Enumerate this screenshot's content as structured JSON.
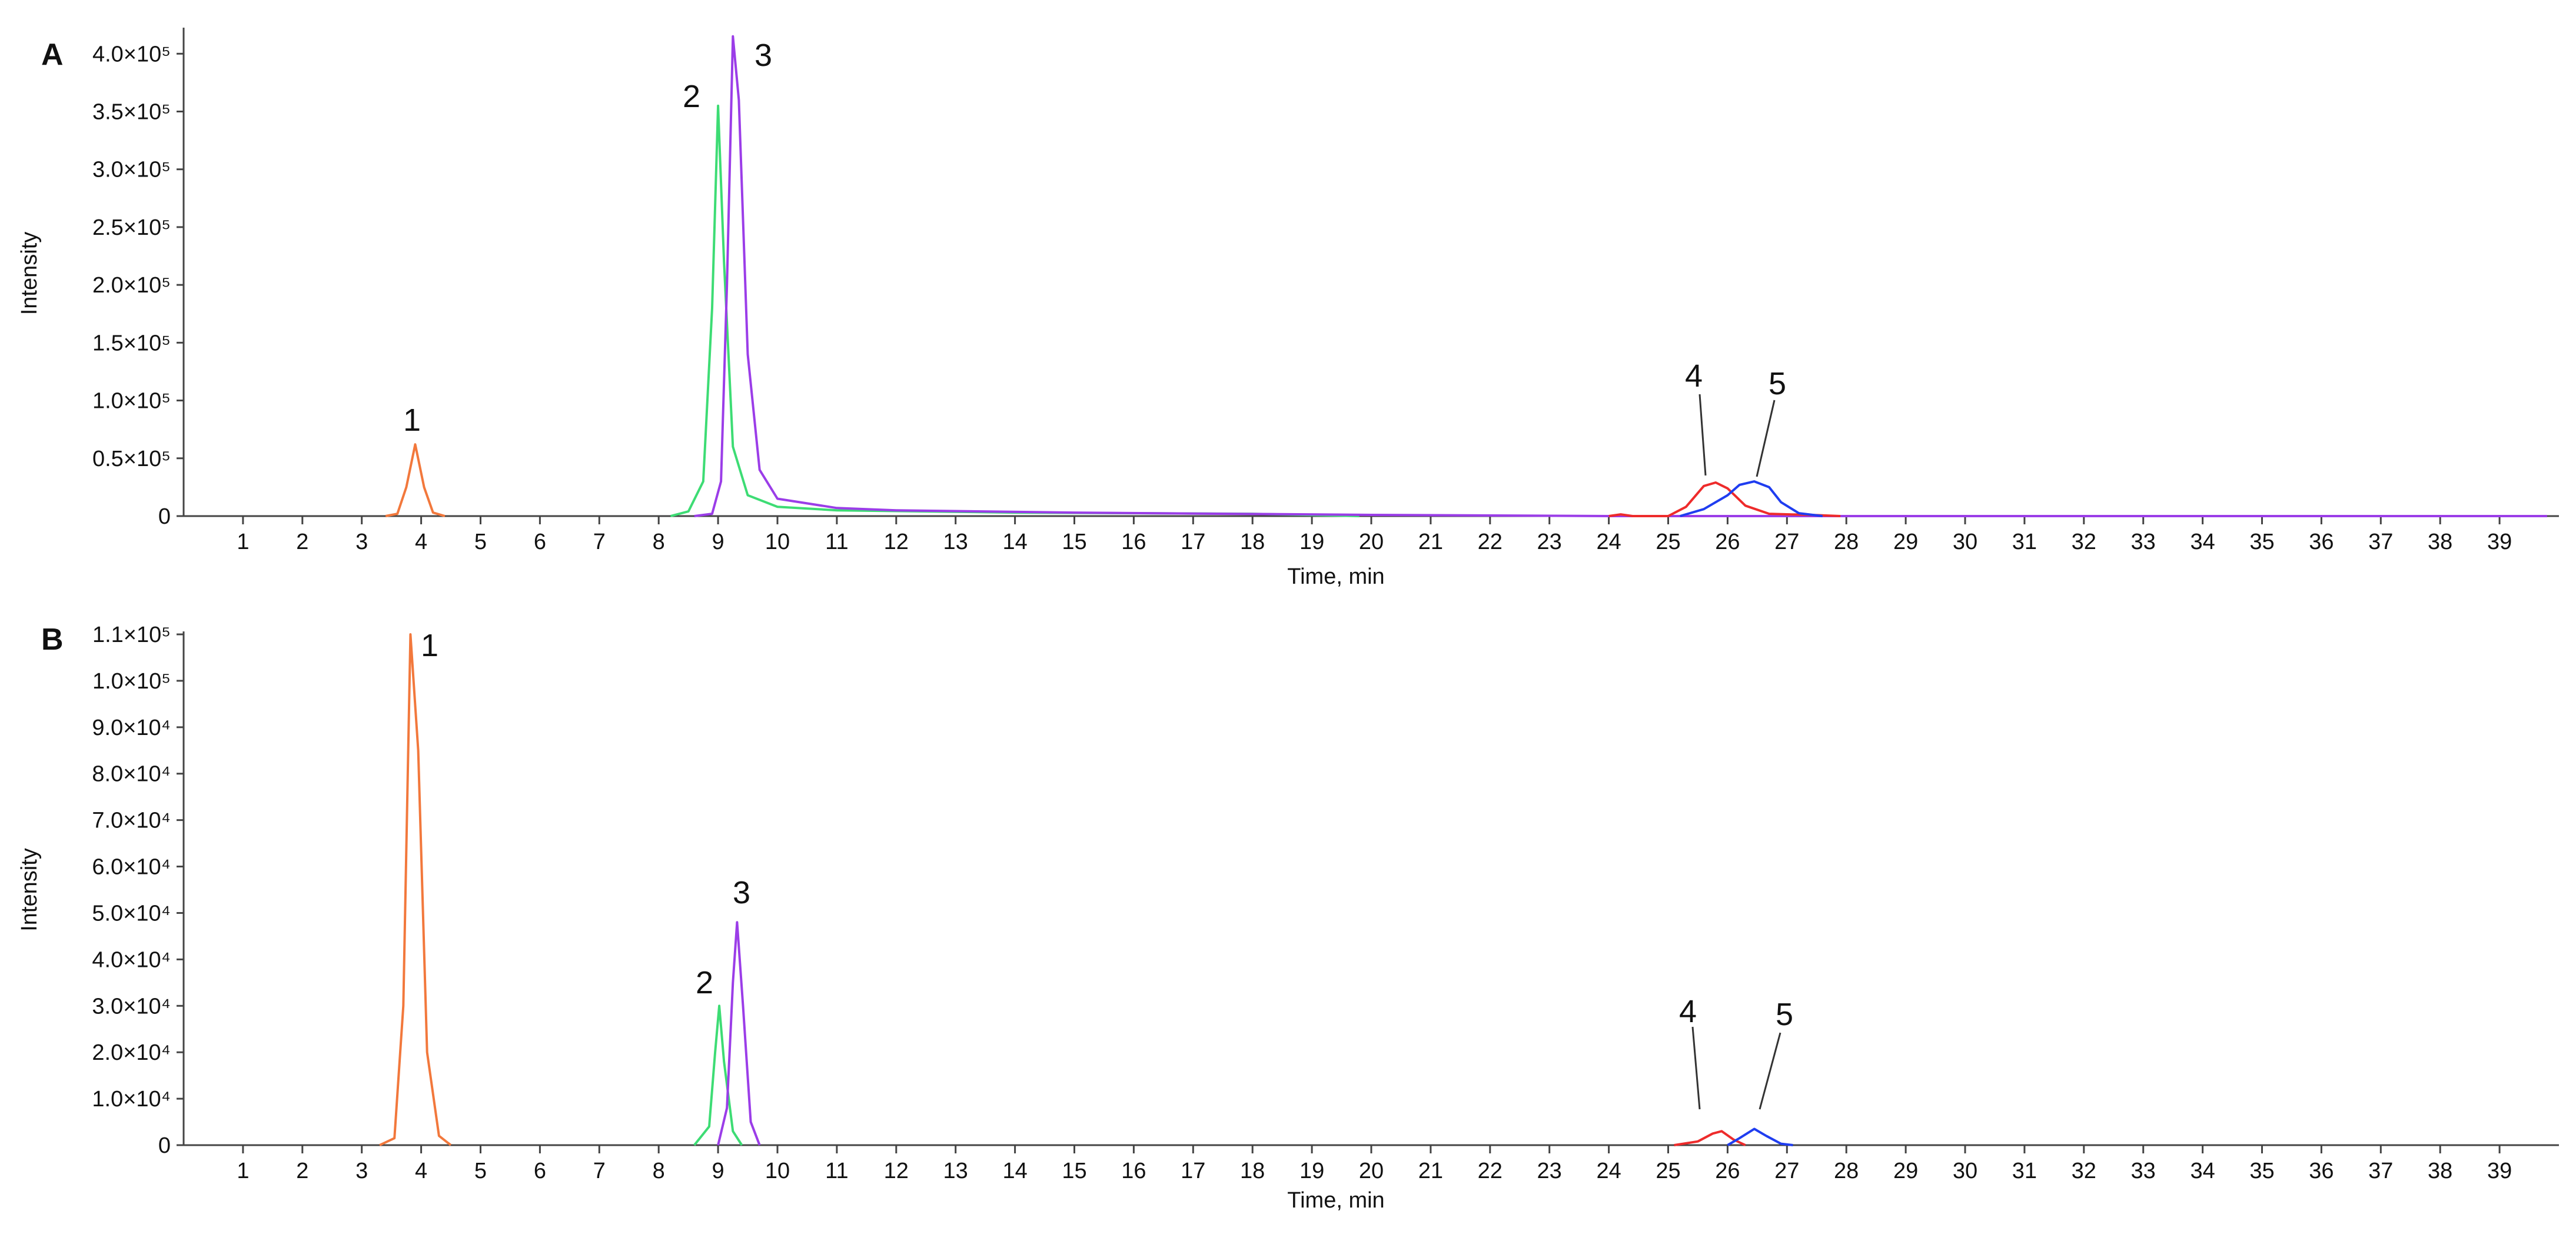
{
  "chart_data": [
    {
      "panel_label": "A",
      "type": "line",
      "xlabel": "Time, min",
      "ylabel": "Intensity",
      "xlim": [
        0,
        40
      ],
      "ylim": [
        0,
        420000
      ],
      "x_ticks": [
        "1",
        "2",
        "3",
        "4",
        "5",
        "6",
        "7",
        "8",
        "9",
        "10",
        "11",
        "12",
        "13",
        "14",
        "15",
        "16",
        "17",
        "18",
        "19",
        "20",
        "21",
        "22",
        "23",
        "24",
        "25",
        "26",
        "27",
        "28",
        "29",
        "30",
        "31",
        "32",
        "33",
        "34",
        "35",
        "36",
        "37",
        "38",
        "39"
      ],
      "y_ticks": [
        {
          "value": 0,
          "label": "0"
        },
        {
          "value": 50000,
          "label": "0.5×10⁵"
        },
        {
          "value": 100000,
          "label": "1.0×10⁵"
        },
        {
          "value": 150000,
          "label": "1.5×10⁵"
        },
        {
          "value": 200000,
          "label": "2.0×10⁵"
        },
        {
          "value": 250000,
          "label": "2.5×10⁵"
        },
        {
          "value": 300000,
          "label": "3.0×10⁵"
        },
        {
          "value": 350000,
          "label": "3.5×10⁵"
        },
        {
          "value": 400000,
          "label": "4.0×10⁵"
        }
      ],
      "grid": false,
      "legend": "none",
      "series": [
        {
          "color": "#f2783c",
          "peak_label": "1",
          "points": [
            [
              3.4,
              0
            ],
            [
              3.6,
              2000
            ],
            [
              3.75,
              25000
            ],
            [
              3.9,
              62000
            ],
            [
              4.05,
              25000
            ],
            [
              4.2,
              3000
            ],
            [
              4.4,
              0
            ]
          ]
        },
        {
          "color": "#3ddc74",
          "peak_label": "2",
          "points": [
            [
              8.2,
              0
            ],
            [
              8.5,
              4000
            ],
            [
              8.75,
              30000
            ],
            [
              8.9,
              180000
            ],
            [
              9.0,
              355000
            ],
            [
              9.1,
              220000
            ],
            [
              9.25,
              60000
            ],
            [
              9.5,
              18000
            ],
            [
              10.0,
              8000
            ],
            [
              11.0,
              5000
            ],
            [
              14.0,
              3000
            ],
            [
              18.0,
              2000
            ],
            [
              19.8,
              0
            ]
          ]
        },
        {
          "color": "#9b3de8",
          "peak_label": "3",
          "points": [
            [
              8.6,
              0
            ],
            [
              8.9,
              2000
            ],
            [
              9.05,
              30000
            ],
            [
              9.15,
              200000
            ],
            [
              9.25,
              415000
            ],
            [
              9.35,
              360000
            ],
            [
              9.5,
              140000
            ],
            [
              9.7,
              40000
            ],
            [
              10.0,
              15000
            ],
            [
              11.0,
              7000
            ],
            [
              12.0,
              5000
            ],
            [
              15.0,
              3000
            ],
            [
              20.0,
              1000
            ],
            [
              24.0,
              0
            ],
            [
              39.8,
              0
            ]
          ]
        },
        {
          "color": "#ee2b2b",
          "peak_label": "4",
          "points": [
            [
              24.0,
              0
            ],
            [
              24.2,
              1500
            ],
            [
              24.4,
              0
            ],
            [
              25.0,
              0
            ],
            [
              25.3,
              8000
            ],
            [
              25.6,
              26000
            ],
            [
              25.8,
              29000
            ],
            [
              26.0,
              24000
            ],
            [
              26.3,
              9000
            ],
            [
              26.7,
              2000
            ],
            [
              27.5,
              800
            ],
            [
              27.9,
              0
            ]
          ]
        },
        {
          "color": "#1f3df0",
          "peak_label": "5",
          "points": [
            [
              25.2,
              0
            ],
            [
              25.6,
              6000
            ],
            [
              26.0,
              18000
            ],
            [
              26.2,
              27000
            ],
            [
              26.45,
              30000
            ],
            [
              26.7,
              25000
            ],
            [
              26.9,
              12000
            ],
            [
              27.2,
              2500
            ],
            [
              27.6,
              0
            ]
          ]
        }
      ]
    },
    {
      "panel_label": "B",
      "type": "line",
      "xlabel": "Time, min",
      "ylabel": "Intensity",
      "xlim": [
        0,
        40
      ],
      "ylim": [
        0,
        110000
      ],
      "x_ticks": [
        "1",
        "2",
        "3",
        "4",
        "5",
        "6",
        "7",
        "8",
        "9",
        "10",
        "11",
        "12",
        "13",
        "14",
        "15",
        "16",
        "17",
        "18",
        "19",
        "20",
        "21",
        "22",
        "23",
        "24",
        "25",
        "26",
        "27",
        "28",
        "29",
        "30",
        "31",
        "32",
        "33",
        "34",
        "35",
        "36",
        "37",
        "38",
        "39"
      ],
      "y_ticks": [
        {
          "value": 0,
          "label": "0"
        },
        {
          "value": 10000,
          "label": "1.0×10⁴"
        },
        {
          "value": 20000,
          "label": "2.0×10⁴"
        },
        {
          "value": 30000,
          "label": "3.0×10⁴"
        },
        {
          "value": 40000,
          "label": "4.0×10⁴"
        },
        {
          "value": 50000,
          "label": "5.0×10⁴"
        },
        {
          "value": 60000,
          "label": "6.0×10⁴"
        },
        {
          "value": 70000,
          "label": "7.0×10⁴"
        },
        {
          "value": 80000,
          "label": "8.0×10⁴"
        },
        {
          "value": 90000,
          "label": "9.0×10⁴"
        },
        {
          "value": 100000,
          "label": "1.0×10⁵"
        },
        {
          "value": 110000,
          "label": "1.1×10⁵"
        }
      ],
      "grid": false,
      "legend": "none",
      "series": [
        {
          "color": "#f2783c",
          "peak_label": "1",
          "points": [
            [
              3.3,
              0
            ],
            [
              3.55,
              1500
            ],
            [
              3.7,
              30000
            ],
            [
              3.82,
              110000
            ],
            [
              3.95,
              85000
            ],
            [
              4.1,
              20000
            ],
            [
              4.3,
              2000
            ],
            [
              4.5,
              0
            ]
          ]
        },
        {
          "color": "#3ddc74",
          "peak_label": "2",
          "points": [
            [
              8.6,
              0
            ],
            [
              8.85,
              4000
            ],
            [
              8.95,
              20000
            ],
            [
              9.02,
              30000
            ],
            [
              9.1,
              18000
            ],
            [
              9.25,
              3000
            ],
            [
              9.4,
              0
            ]
          ]
        },
        {
          "color": "#9b3de8",
          "peak_label": "3",
          "points": [
            [
              9.0,
              0
            ],
            [
              9.15,
              8000
            ],
            [
              9.25,
              35000
            ],
            [
              9.32,
              48000
            ],
            [
              9.42,
              30000
            ],
            [
              9.55,
              5000
            ],
            [
              9.7,
              0
            ]
          ]
        },
        {
          "color": "#ee2b2b",
          "peak_label": "4",
          "points": [
            [
              25.1,
              0
            ],
            [
              25.5,
              800
            ],
            [
              25.75,
              2500
            ],
            [
              25.9,
              3000
            ],
            [
              26.1,
              1200
            ],
            [
              26.3,
              0
            ]
          ]
        },
        {
          "color": "#1f3df0",
          "peak_label": "5",
          "points": [
            [
              26.0,
              0
            ],
            [
              26.2,
              1500
            ],
            [
              26.45,
              3500
            ],
            [
              26.65,
              2000
            ],
            [
              26.9,
              300
            ],
            [
              27.1,
              0
            ]
          ]
        }
      ]
    }
  ]
}
